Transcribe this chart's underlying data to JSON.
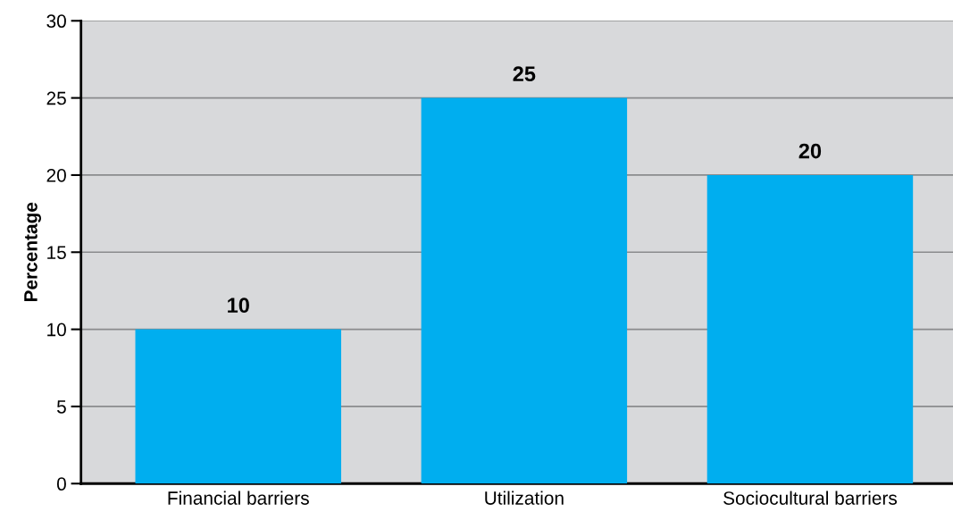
{
  "chart_data": {
    "type": "bar",
    "ylabel": "Percentage",
    "categories": [
      "Financial barriers",
      "Utilization",
      "Sociocultural barriers"
    ],
    "values": [
      10,
      25,
      20
    ],
    "color": "#00aeef",
    "ylim": [
      0,
      30
    ],
    "yticks": [
      0,
      5,
      10,
      15,
      20,
      25,
      30
    ],
    "grid": "y",
    "data_labels": true
  }
}
